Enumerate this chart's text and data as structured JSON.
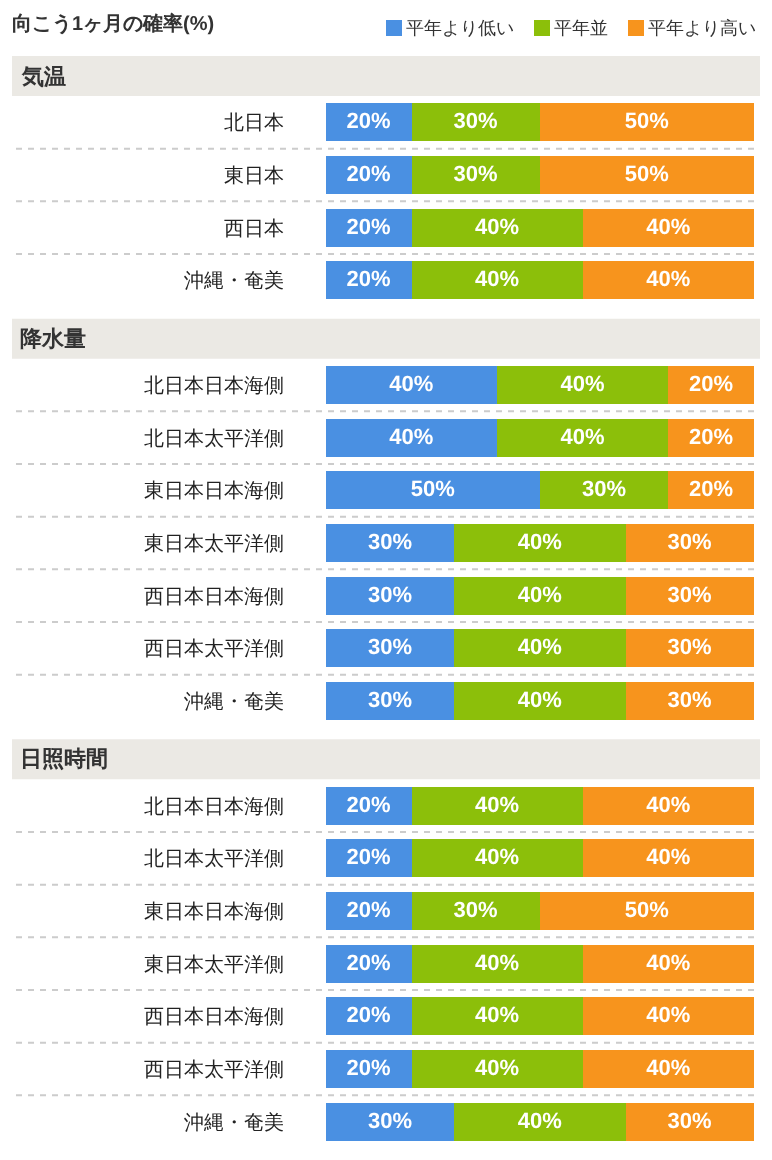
{
  "chart_data": [
    {
      "type": "bar",
      "orientation": "horizontal",
      "stacked": true,
      "title": "向こう1ヶ月の確率(%)",
      "subtitle": "気温",
      "legend": "top right",
      "tick_labels": "y",
      "xlim": [
        0,
        100
      ],
      "categories": [
        "北日本",
        "東日本",
        "西日本",
        "沖縄・奄美"
      ],
      "series": [
        {
          "name": "平年より低い",
          "color": "#4a90e2",
          "values": [
            20,
            20,
            20,
            20
          ],
          "value_labels": [
            "20%",
            "20%",
            "20%",
            "20%"
          ]
        },
        {
          "name": "平年並",
          "color": "#8cbf0a",
          "values": [
            30,
            30,
            40,
            40
          ],
          "value_labels": [
            "30%",
            "30%",
            "40%",
            "40%"
          ]
        },
        {
          "name": "平年より高い",
          "color": "#f7941d",
          "values": [
            50,
            50,
            40,
            40
          ],
          "value_labels": [
            "50%",
            "50%",
            "40%",
            "40%"
          ]
        }
      ]
    },
    {
      "type": "bar",
      "orientation": "horizontal",
      "stacked": true,
      "subtitle": "降水量",
      "tick_labels": "y",
      "xlim": [
        0,
        100
      ],
      "categories": [
        "北日本日本海側",
        "北日本太平洋側",
        "東日本日本海側",
        "東日本太平洋側",
        "西日本日本海側",
        "西日本太平洋側",
        "沖縄・奄美"
      ],
      "series": [
        {
          "color": "#4a90e2",
          "values": [
            40,
            40,
            50,
            30,
            30,
            30,
            30
          ],
          "value_labels": [
            "40%",
            "40%",
            "50%",
            "30%",
            "30%",
            "30%",
            "30%"
          ]
        },
        {
          "color": "#8cbf0a",
          "values": [
            40,
            40,
            30,
            40,
            40,
            40,
            40
          ],
          "value_labels": [
            "40%",
            "40%",
            "30%",
            "40%",
            "40%",
            "40%",
            "40%"
          ]
        },
        {
          "color": "#f7941d",
          "values": [
            20,
            20,
            20,
            30,
            30,
            30,
            30
          ],
          "value_labels": [
            "20%",
            "20%",
            "20%",
            "30%",
            "30%",
            "30%",
            "30%"
          ]
        }
      ]
    },
    {
      "type": "bar",
      "orientation": "horizontal",
      "stacked": true,
      "subtitle": "日照時間",
      "tick_labels": "y",
      "xlim": [
        0,
        100
      ],
      "categories": [
        "北日本日本海側",
        "北日本太平洋側",
        "東日本日本海側",
        "東日本太平洋側",
        "西日本日本海側",
        "西日本太平洋側",
        "沖縄・奄美"
      ],
      "series": [
        {
          "color": "#4a90e2",
          "values": [
            20,
            20,
            20,
            20,
            20,
            20,
            30
          ],
          "value_labels": [
            "20%",
            "20%",
            "20%",
            "20%",
            "20%",
            "20%",
            "30%"
          ]
        },
        {
          "color": "#8cbf0a",
          "values": [
            40,
            40,
            30,
            40,
            40,
            40,
            40
          ],
          "value_labels": [
            "40%",
            "40%",
            "30%",
            "40%",
            "40%",
            "40%",
            "40%"
          ]
        },
        {
          "color": "#f7941d",
          "values": [
            40,
            40,
            50,
            40,
            40,
            40,
            30
          ],
          "value_labels": [
            "40%",
            "40%",
            "50%",
            "40%",
            "40%",
            "40%",
            "30%"
          ]
        }
      ]
    }
  ]
}
